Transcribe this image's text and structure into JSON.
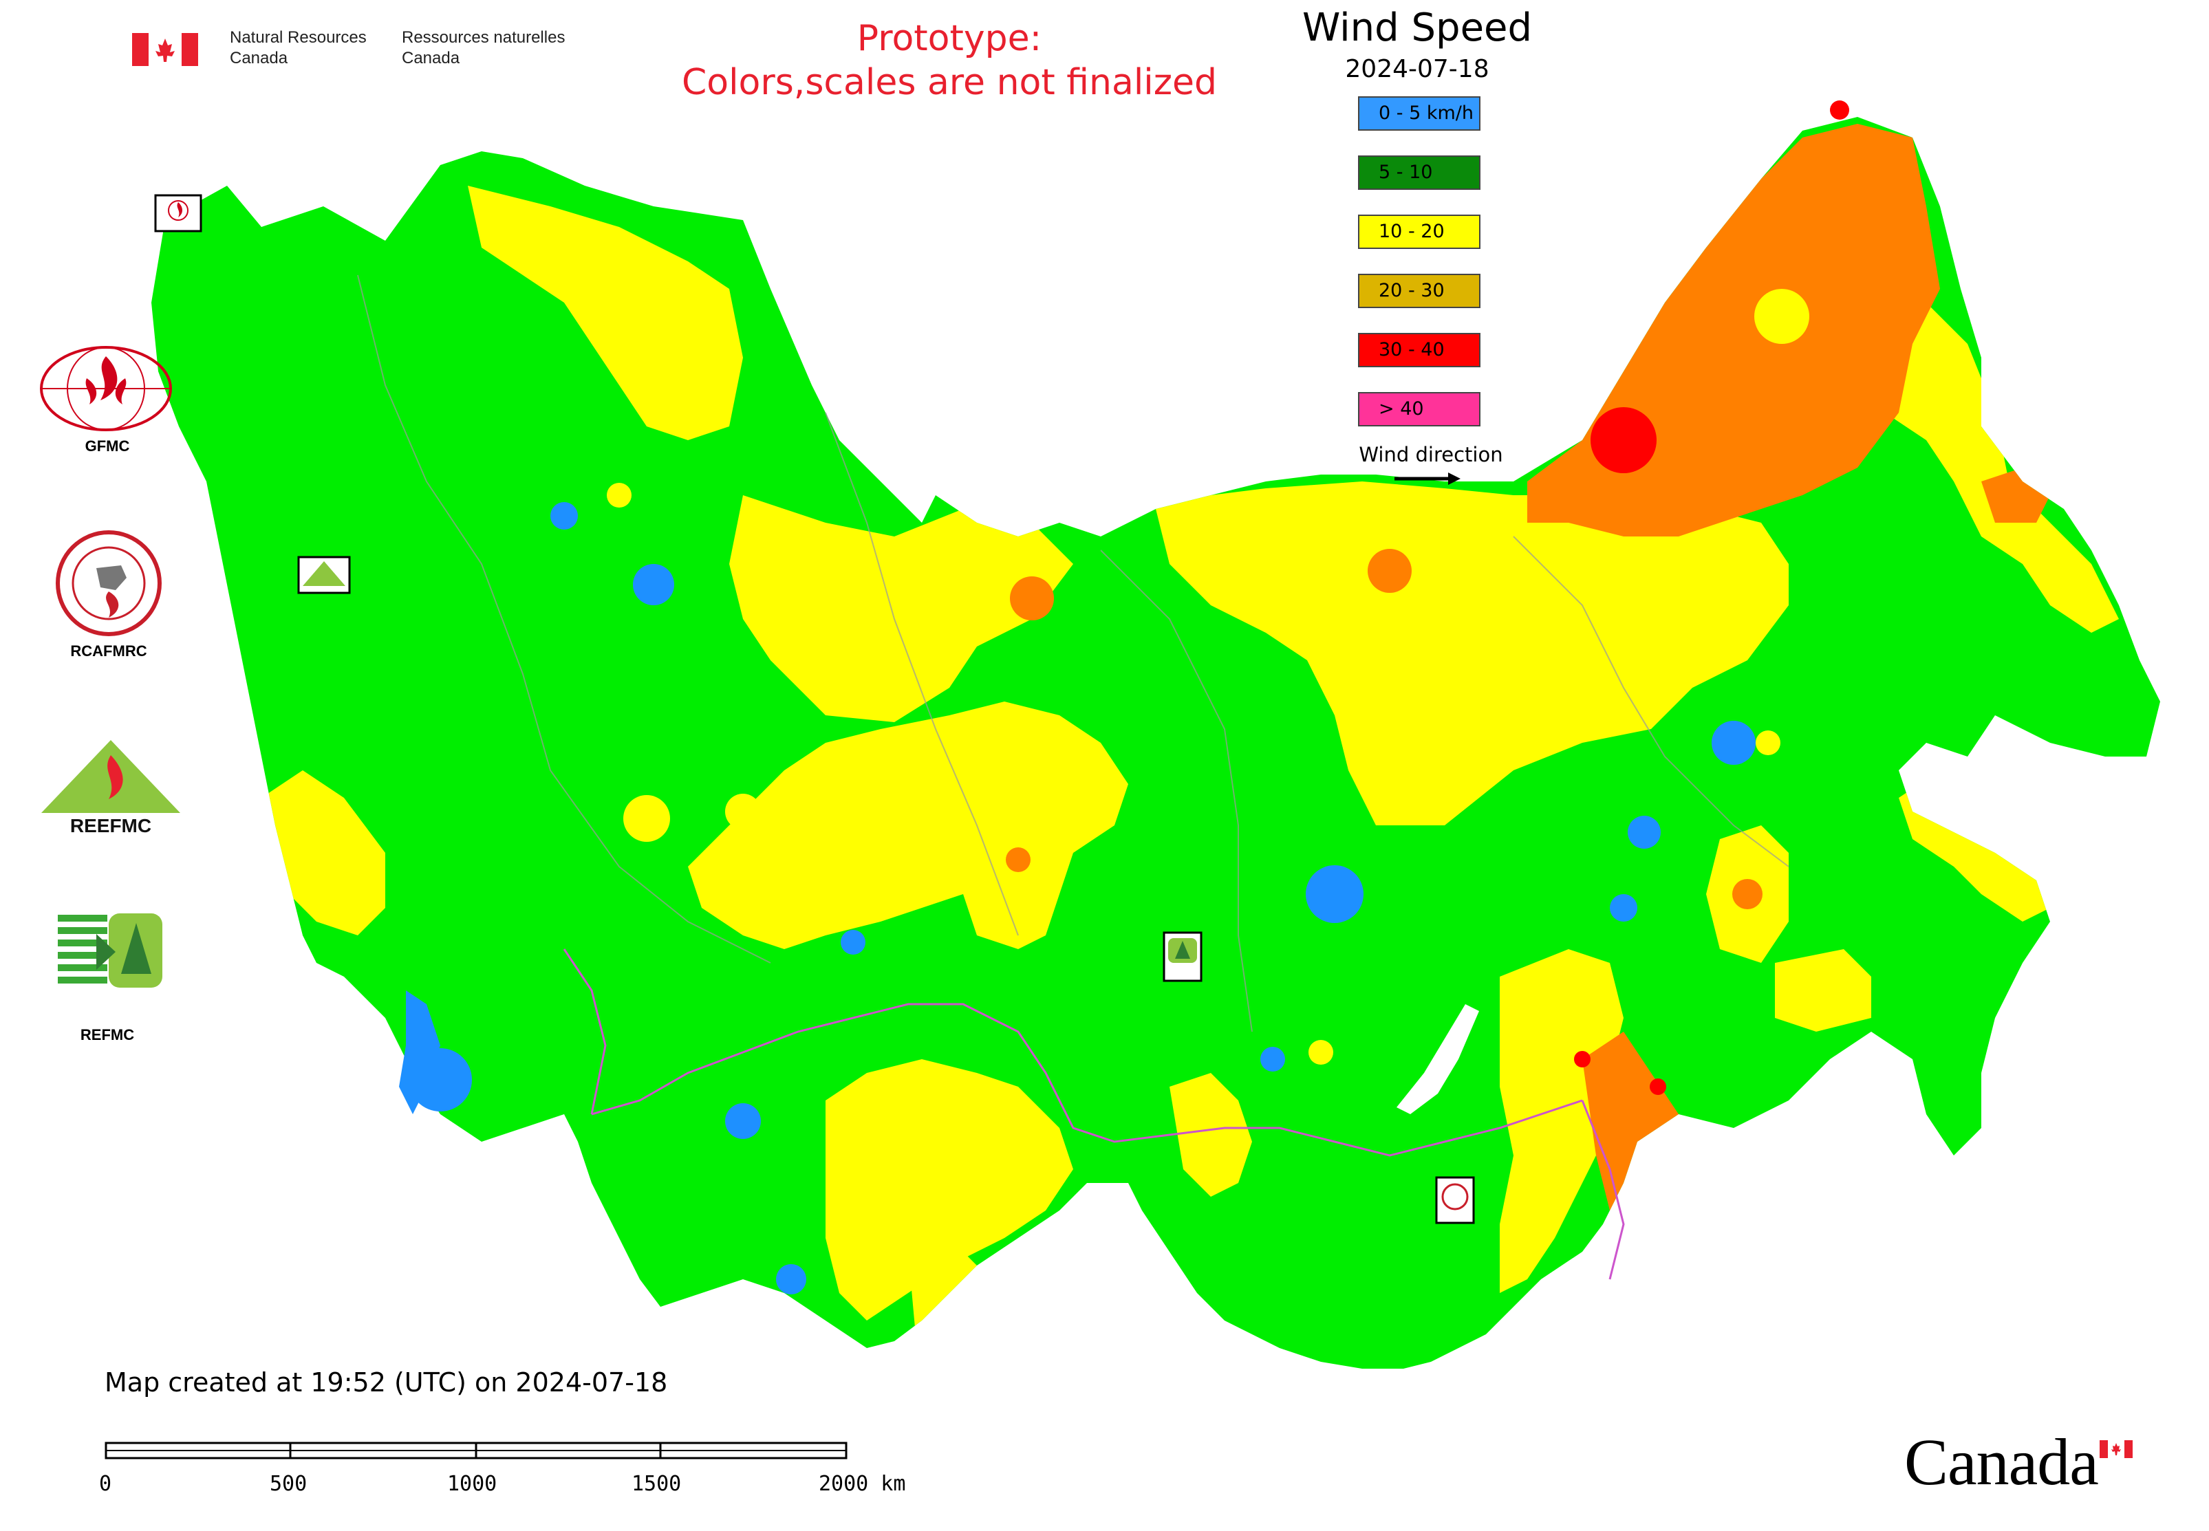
{
  "header": {
    "dept_en_line1": "Natural Resources",
    "dept_en_line2": "Canada",
    "dept_fr_line1": "Ressources naturelles",
    "dept_fr_line2": "Canada",
    "prototype_line1": "Prototype:",
    "prototype_line2": "Colors,scales are not finalized"
  },
  "legend": {
    "title": "Wind Speed",
    "date": "2024-07-18",
    "classes": [
      {
        "label": "0 - 5 km/h",
        "color": "#3399ff"
      },
      {
        "label": "5 - 10",
        "color": "#0a8a0a"
      },
      {
        "label": "10 - 20",
        "color": "#ffff00"
      },
      {
        "label": "20 - 30",
        "color": "#dcb400"
      },
      {
        "label": "30 - 40",
        "color": "#ff0000"
      },
      {
        "label": "> 40",
        "color": "#ff3399"
      }
    ],
    "wind_direction_label": "Wind direction"
  },
  "map_colors": {
    "green": "#00ee00",
    "yellow": "#ffff00",
    "orange": "#ff8000",
    "blue": "#1e90ff",
    "red": "#ff0000",
    "boundary": "#cc55cc"
  },
  "centers": {
    "gfmc": "GFMC",
    "rcafmrc": "RCAFMRC",
    "reefmc": "REEFMC",
    "refmc": "REFMC",
    "reefmc_logo_text": "REEFMC"
  },
  "footer": {
    "created_text": "Map created at 19:52 (UTC) on 2024-07-18",
    "scale_ticks": [
      "0",
      "500",
      "1000",
      "1500",
      "2000 km"
    ],
    "canada_wordmark": "Canada"
  }
}
